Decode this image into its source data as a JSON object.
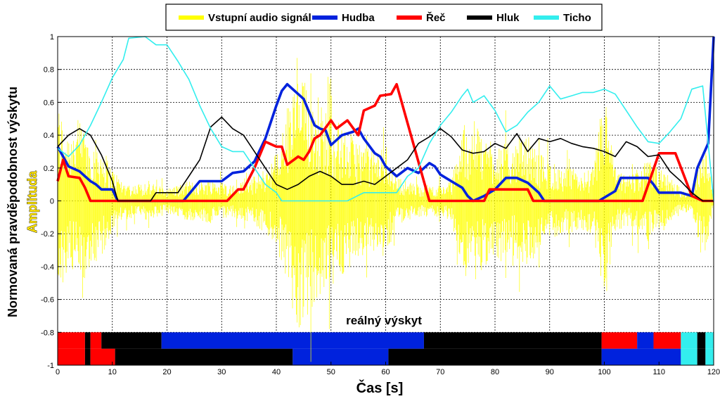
{
  "chart_data": {
    "type": "line",
    "xlabel": "Čas [s]",
    "ylabel": "Normovaná pravděpodobnost výskytu",
    "ylabel2": "Amplituda",
    "xlim": [
      0,
      120
    ],
    "ylim": [
      -1,
      1
    ],
    "xticks": [
      0,
      10,
      20,
      30,
      40,
      50,
      60,
      70,
      80,
      90,
      100,
      110,
      120
    ],
    "yticks": [
      -1,
      -0.8,
      -0.6,
      -0.4,
      -0.2,
      0,
      0.2,
      0.4,
      0.6,
      0.8,
      1
    ],
    "grid": true,
    "legend_position": "top-center",
    "annotation": "reálný výskyt",
    "series": [
      {
        "name": "Vstupní audio signál",
        "color": "#ffff00",
        "kind": "waveform",
        "envelope": [
          [
            0,
            0.6
          ],
          [
            2,
            0.45
          ],
          [
            4,
            0.5
          ],
          [
            6,
            0.4
          ],
          [
            8,
            0.35
          ],
          [
            10,
            0.2
          ],
          [
            12,
            0.12
          ],
          [
            14,
            0.1
          ],
          [
            16,
            0.12
          ],
          [
            18,
            0.1
          ],
          [
            20,
            0.08
          ],
          [
            22,
            0.1
          ],
          [
            24,
            0.12
          ],
          [
            26,
            0.12
          ],
          [
            28,
            0.14
          ],
          [
            30,
            0.12
          ],
          [
            32,
            0.1
          ],
          [
            34,
            0.12
          ],
          [
            36,
            0.15
          ],
          [
            38,
            0.2
          ],
          [
            40,
            0.3
          ],
          [
            42,
            0.55
          ],
          [
            44,
            0.8
          ],
          [
            46,
            0.7
          ],
          [
            48,
            0.6
          ],
          [
            50,
            0.55
          ],
          [
            52,
            0.45
          ],
          [
            54,
            0.4
          ],
          [
            56,
            0.35
          ],
          [
            58,
            0.3
          ],
          [
            60,
            0.35
          ],
          [
            62,
            0.15
          ],
          [
            64,
            0.12
          ],
          [
            66,
            0.1
          ],
          [
            68,
            0.1
          ],
          [
            70,
            0.1
          ],
          [
            72,
            0.12
          ],
          [
            74,
            0.45
          ],
          [
            76,
            0.5
          ],
          [
            78,
            0.4
          ],
          [
            80,
            0.4
          ],
          [
            82,
            0.35
          ],
          [
            84,
            0.35
          ],
          [
            86,
            0.4
          ],
          [
            88,
            0.3
          ],
          [
            90,
            0.25
          ],
          [
            92,
            0.2
          ],
          [
            94,
            0.2
          ],
          [
            96,
            0.18
          ],
          [
            98,
            0.2
          ],
          [
            100,
            0.7
          ],
          [
            102,
            0.2
          ],
          [
            104,
            0.15
          ],
          [
            106,
            0.2
          ],
          [
            108,
            0.25
          ],
          [
            110,
            0.2
          ],
          [
            112,
            0.15
          ],
          [
            114,
            0.08
          ],
          [
            116,
            0.06
          ],
          [
            118,
            0.4
          ],
          [
            120,
            0.05
          ]
        ]
      },
      {
        "name": "Hudba",
        "color": "#0022dd",
        "points": [
          [
            0,
            0.33
          ],
          [
            2,
            0.21
          ],
          [
            4,
            0.18
          ],
          [
            6,
            0.12
          ],
          [
            7,
            0.1
          ],
          [
            8,
            0.07
          ],
          [
            10,
            0.07
          ],
          [
            11,
            0.0
          ],
          [
            23,
            0.0
          ],
          [
            26,
            0.12
          ],
          [
            29,
            0.12
          ],
          [
            30,
            0.12
          ],
          [
            32,
            0.17
          ],
          [
            34,
            0.18
          ],
          [
            36,
            0.24
          ],
          [
            38,
            0.38
          ],
          [
            40,
            0.58
          ],
          [
            41,
            0.67
          ],
          [
            42,
            0.71
          ],
          [
            44,
            0.65
          ],
          [
            45,
            0.62
          ],
          [
            47,
            0.46
          ],
          [
            48,
            0.44
          ],
          [
            49,
            0.43
          ],
          [
            50,
            0.34
          ],
          [
            52,
            0.4
          ],
          [
            54,
            0.42
          ],
          [
            55,
            0.44
          ],
          [
            56,
            0.38
          ],
          [
            58,
            0.29
          ],
          [
            59,
            0.27
          ],
          [
            60,
            0.21
          ],
          [
            62,
            0.15
          ],
          [
            64,
            0.2
          ],
          [
            66,
            0.17
          ],
          [
            68,
            0.23
          ],
          [
            69,
            0.21
          ],
          [
            70,
            0.16
          ],
          [
            72,
            0.12
          ],
          [
            74,
            0.08
          ],
          [
            75,
            0.03
          ],
          [
            76,
            0.0
          ],
          [
            78,
            0.03
          ],
          [
            80,
            0.07
          ],
          [
            82,
            0.14
          ],
          [
            84,
            0.14
          ],
          [
            86,
            0.11
          ],
          [
            88,
            0.05
          ],
          [
            89,
            0.0
          ],
          [
            99,
            0.0
          ],
          [
            102,
            0.06
          ],
          [
            103,
            0.14
          ],
          [
            106,
            0.14
          ],
          [
            108,
            0.14
          ],
          [
            109,
            0.1
          ],
          [
            110,
            0.05
          ],
          [
            114,
            0.05
          ],
          [
            116,
            0.03
          ],
          [
            117,
            0.2
          ],
          [
            119,
            0.35
          ],
          [
            120,
            1.0
          ]
        ]
      },
      {
        "name": "Řeč",
        "color": "#ff0000",
        "points": [
          [
            0,
            0.12
          ],
          [
            1,
            0.25
          ],
          [
            2,
            0.15
          ],
          [
            4,
            0.14
          ],
          [
            5,
            0.08
          ],
          [
            6,
            0.0
          ],
          [
            31,
            0.0
          ],
          [
            33,
            0.07
          ],
          [
            34,
            0.07
          ],
          [
            36,
            0.2
          ],
          [
            38,
            0.36
          ],
          [
            40,
            0.33
          ],
          [
            41,
            0.33
          ],
          [
            42,
            0.22
          ],
          [
            44,
            0.27
          ],
          [
            45,
            0.25
          ],
          [
            46,
            0.3
          ],
          [
            47,
            0.38
          ],
          [
            48,
            0.4
          ],
          [
            50,
            0.49
          ],
          [
            51,
            0.44
          ],
          [
            53,
            0.49
          ],
          [
            55,
            0.4
          ],
          [
            56,
            0.55
          ],
          [
            58,
            0.58
          ],
          [
            59,
            0.64
          ],
          [
            61,
            0.65
          ],
          [
            62,
            0.71
          ],
          [
            68,
            0.0
          ],
          [
            78,
            0.0
          ],
          [
            79,
            0.07
          ],
          [
            86,
            0.07
          ],
          [
            87,
            0.0
          ],
          [
            107,
            0.0
          ],
          [
            110,
            0.29
          ],
          [
            112,
            0.29
          ],
          [
            113,
            0.29
          ],
          [
            116,
            0.03
          ],
          [
            118,
            0.0
          ],
          [
            120,
            0.0
          ]
        ]
      },
      {
        "name": "Hluk",
        "color": "#000000",
        "points": [
          [
            0,
            0.33
          ],
          [
            2,
            0.4
          ],
          [
            4,
            0.44
          ],
          [
            6,
            0.4
          ],
          [
            8,
            0.28
          ],
          [
            10,
            0.12
          ],
          [
            11,
            0.0
          ],
          [
            17,
            0.0
          ],
          [
            18,
            0.05
          ],
          [
            22,
            0.05
          ],
          [
            24,
            0.15
          ],
          [
            26,
            0.25
          ],
          [
            28,
            0.45
          ],
          [
            30,
            0.51
          ],
          [
            32,
            0.44
          ],
          [
            34,
            0.4
          ],
          [
            36,
            0.3
          ],
          [
            38,
            0.2
          ],
          [
            40,
            0.1
          ],
          [
            42,
            0.07
          ],
          [
            44,
            0.1
          ],
          [
            46,
            0.15
          ],
          [
            48,
            0.18
          ],
          [
            50,
            0.15
          ],
          [
            52,
            0.1
          ],
          [
            54,
            0.1
          ],
          [
            56,
            0.12
          ],
          [
            58,
            0.1
          ],
          [
            60,
            0.15
          ],
          [
            62,
            0.2
          ],
          [
            64,
            0.25
          ],
          [
            66,
            0.35
          ],
          [
            68,
            0.39
          ],
          [
            70,
            0.44
          ],
          [
            72,
            0.39
          ],
          [
            74,
            0.31
          ],
          [
            76,
            0.29
          ],
          [
            78,
            0.3
          ],
          [
            80,
            0.35
          ],
          [
            82,
            0.32
          ],
          [
            84,
            0.41
          ],
          [
            86,
            0.3
          ],
          [
            88,
            0.38
          ],
          [
            90,
            0.36
          ],
          [
            92,
            0.38
          ],
          [
            94,
            0.35
          ],
          [
            96,
            0.33
          ],
          [
            98,
            0.32
          ],
          [
            100,
            0.3
          ],
          [
            102,
            0.27
          ],
          [
            104,
            0.36
          ],
          [
            106,
            0.33
          ],
          [
            108,
            0.27
          ],
          [
            110,
            0.28
          ],
          [
            112,
            0.18
          ],
          [
            114,
            0.12
          ],
          [
            116,
            0.05
          ],
          [
            118,
            0.0
          ],
          [
            120,
            0.0
          ]
        ]
      },
      {
        "name": "Ticho",
        "color": "#33eeee",
        "points": [
          [
            0,
            0.32
          ],
          [
            2,
            0.27
          ],
          [
            4,
            0.34
          ],
          [
            6,
            0.46
          ],
          [
            8,
            0.6
          ],
          [
            10,
            0.75
          ],
          [
            12,
            0.86
          ],
          [
            13,
            0.99
          ],
          [
            16,
            1.0
          ],
          [
            18,
            0.95
          ],
          [
            20,
            0.95
          ],
          [
            22,
            0.85
          ],
          [
            24,
            0.74
          ],
          [
            26,
            0.58
          ],
          [
            28,
            0.44
          ],
          [
            30,
            0.33
          ],
          [
            32,
            0.3
          ],
          [
            34,
            0.3
          ],
          [
            36,
            0.2
          ],
          [
            38,
            0.1
          ],
          [
            40,
            0.05
          ],
          [
            41,
            0.0
          ],
          [
            53,
            0.0
          ],
          [
            56,
            0.05
          ],
          [
            60,
            0.05
          ],
          [
            62,
            0.05
          ],
          [
            64,
            0.15
          ],
          [
            66,
            0.2
          ],
          [
            68,
            0.35
          ],
          [
            70,
            0.46
          ],
          [
            72,
            0.54
          ],
          [
            74,
            0.64
          ],
          [
            75,
            0.68
          ],
          [
            76,
            0.6
          ],
          [
            78,
            0.64
          ],
          [
            80,
            0.55
          ],
          [
            82,
            0.42
          ],
          [
            84,
            0.46
          ],
          [
            86,
            0.54
          ],
          [
            88,
            0.6
          ],
          [
            90,
            0.7
          ],
          [
            92,
            0.62
          ],
          [
            94,
            0.64
          ],
          [
            96,
            0.66
          ],
          [
            98,
            0.66
          ],
          [
            100,
            0.68
          ],
          [
            102,
            0.65
          ],
          [
            104,
            0.55
          ],
          [
            106,
            0.45
          ],
          [
            108,
            0.36
          ],
          [
            110,
            0.35
          ],
          [
            112,
            0.42
          ],
          [
            114,
            0.5
          ],
          [
            116,
            0.68
          ],
          [
            118,
            0.7
          ],
          [
            120,
            0.0
          ]
        ]
      }
    ],
    "real_occurrence": {
      "top_band": [
        {
          "start": 0,
          "end": 5,
          "class": "Řeč"
        },
        {
          "start": 5,
          "end": 6,
          "class": "Hluk"
        },
        {
          "start": 6,
          "end": 8,
          "class": "Řeč"
        },
        {
          "start": 8,
          "end": 19,
          "class": "Hluk"
        },
        {
          "start": 19,
          "end": 67,
          "class": "Hudba"
        },
        {
          "start": 67,
          "end": 99.5,
          "class": "Hluk"
        },
        {
          "start": 99.5,
          "end": 106,
          "class": "Řeč"
        },
        {
          "start": 106,
          "end": 109,
          "class": "Hudba"
        },
        {
          "start": 109,
          "end": 114,
          "class": "Řeč"
        },
        {
          "start": 114,
          "end": 117,
          "class": "Ticho"
        },
        {
          "start": 117,
          "end": 118.5,
          "class": "Hluk"
        },
        {
          "start": 118.5,
          "end": 120,
          "class": "Ticho"
        }
      ],
      "bottom_band": [
        {
          "start": 0,
          "end": 5,
          "class": "Řeč"
        },
        {
          "start": 5,
          "end": 6,
          "class": "Hluk"
        },
        {
          "start": 6,
          "end": 10.5,
          "class": "Řeč"
        },
        {
          "start": 10.5,
          "end": 43,
          "class": "Hluk"
        },
        {
          "start": 43,
          "end": 60.5,
          "class": "Hudba"
        },
        {
          "start": 60.5,
          "end": 99.5,
          "class": "Hluk"
        },
        {
          "start": 99.5,
          "end": 114,
          "class": "Hudba"
        },
        {
          "start": 114,
          "end": 117,
          "class": "Ticho"
        },
        {
          "start": 117,
          "end": 118.5,
          "class": "Hluk"
        },
        {
          "start": 118.5,
          "end": 120,
          "class": "Ticho"
        }
      ]
    }
  }
}
